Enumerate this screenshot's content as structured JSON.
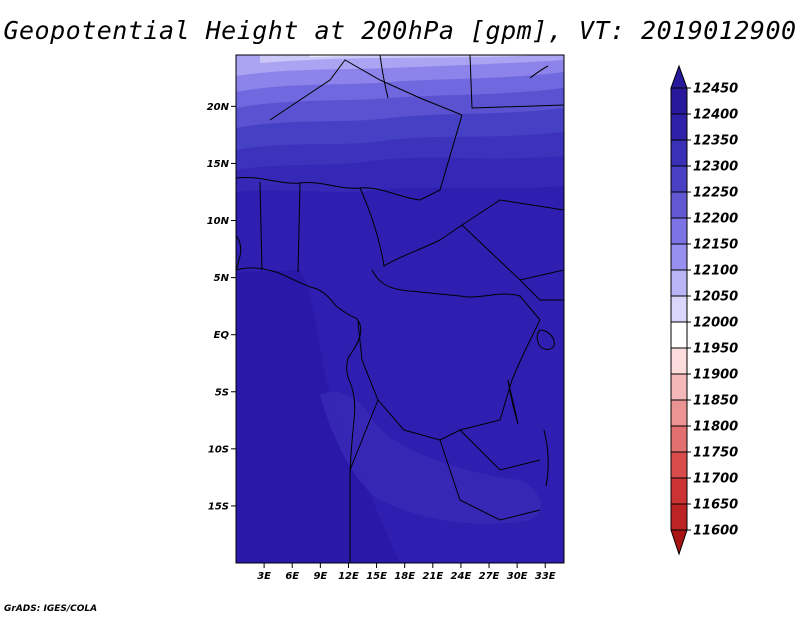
{
  "title": "Geopotential Height at 200hPa [gpm], VT: 2019012900",
  "credit": "GrADS: IGES/COLA",
  "map": {
    "lon_range": [
      0,
      35
    ],
    "lat_range": [
      -20,
      24.5
    ],
    "lat_ticks": [
      {
        "value": 20,
        "label": "20N"
      },
      {
        "value": 15,
        "label": "15N"
      },
      {
        "value": 10,
        "label": "10N"
      },
      {
        "value": 5,
        "label": "5N"
      },
      {
        "value": 0,
        "label": "EQ"
      },
      {
        "value": -5,
        "label": "5S"
      },
      {
        "value": -10,
        "label": "10S"
      },
      {
        "value": -15,
        "label": "15S"
      }
    ],
    "lon_ticks": [
      {
        "value": 3,
        "label": "3E"
      },
      {
        "value": 6,
        "label": "6E"
      },
      {
        "value": 9,
        "label": "9E"
      },
      {
        "value": 12,
        "label": "12E"
      },
      {
        "value": 15,
        "label": "15E"
      },
      {
        "value": 18,
        "label": "18E"
      },
      {
        "value": 21,
        "label": "21E"
      },
      {
        "value": 24,
        "label": "24E"
      },
      {
        "value": 27,
        "label": "27E"
      },
      {
        "value": 30,
        "label": "30E"
      },
      {
        "value": 33,
        "label": "33E"
      }
    ]
  },
  "colorbar": {
    "levels": [
      {
        "label": "12450",
        "color": "#28189c"
      },
      {
        "label": "12400",
        "color": "#2e20a8"
      },
      {
        "label": "12350",
        "color": "#3a30b8"
      },
      {
        "label": "12300",
        "color": "#4a40c4"
      },
      {
        "label": "12250",
        "color": "#6258d4"
      },
      {
        "label": "12200",
        "color": "#7c74e4"
      },
      {
        "label": "12150",
        "color": "#9890f0"
      },
      {
        "label": "12100",
        "color": "#b8b4f6"
      },
      {
        "label": "12050",
        "color": "#d8d6fa"
      },
      {
        "label": "12000",
        "color": "#ffffff"
      },
      {
        "label": "11950",
        "color": "#fcdcdc"
      },
      {
        "label": "11900",
        "color": "#f4b8b8"
      },
      {
        "label": "11850",
        "color": "#ec9494"
      },
      {
        "label": "11800",
        "color": "#e27070"
      },
      {
        "label": "11750",
        "color": "#d84c4c"
      },
      {
        "label": "11700",
        "color": "#cc3434"
      },
      {
        "label": "11650",
        "color": "#bc2424"
      },
      {
        "label": "11600",
        "color": "#a81414"
      }
    ]
  }
}
